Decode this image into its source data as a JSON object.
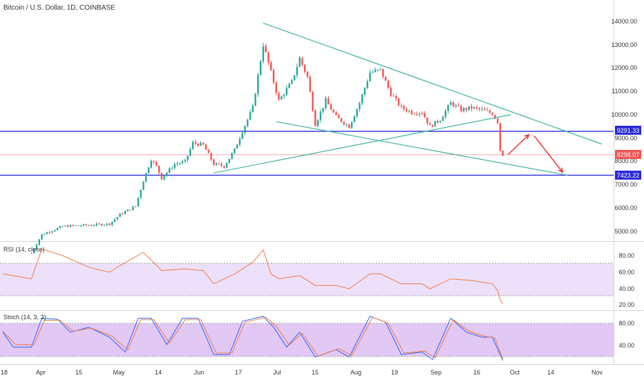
{
  "header": {
    "title": "Bitcoin / U.S. Dollar, 1D, COINBASE"
  },
  "colors": {
    "up": "#26a69a",
    "down": "#ef5350",
    "trendline": "#3cb5a0",
    "hline": "#2a2ad8",
    "arrow": "#e52a2a",
    "rsi_line": "#f07b3f",
    "rsi_band": "#ede0fa",
    "stoch_k": "#2962ff",
    "stoch_d": "#f07b3f",
    "stoch_band": "#e1c8f5",
    "axis_text": "#333333"
  },
  "price_axis": {
    "ticks": [
      "14000.00",
      "13000.00",
      "12000.00",
      "11000.00",
      "10000.00",
      "9000.00",
      "8000.00",
      "7000.00",
      "6000.00",
      "5000.00"
    ],
    "tags": [
      "9291.33",
      "8298.07",
      "7423.22"
    ]
  },
  "rsi_panel": {
    "label": "RSI (14, close)",
    "ticks": [
      "80.00",
      "60.00",
      "40.00",
      "20.00"
    ]
  },
  "stoch_panel": {
    "label": "Stoch (14, 3, 3)",
    "ticks": [
      "80.00",
      "40.00"
    ]
  },
  "time_axis": {
    "ticks": [
      "18",
      "Apr",
      "15",
      "May",
      "14",
      "Jun",
      "17",
      "Jul",
      "15",
      "Aug",
      "19",
      "Sep",
      "16",
      "Oct",
      "14",
      "Nov"
    ]
  },
  "chart_data": {
    "type": "candlestick",
    "title": "Bitcoin / U.S. Dollar, 1D, COINBASE",
    "x_range": [
      "2019-03-18",
      "2019-11-07"
    ],
    "y_range": [
      4400,
      14700
    ],
    "horizontal_levels": [
      9291.33,
      8298.07,
      7423.22
    ],
    "trendlines": [
      {
        "from": [
          "2019-06-26",
          13900
        ],
        "to": [
          "2019-11-03",
          8750
        ]
      },
      {
        "from": [
          "2019-07-01",
          9700
        ],
        "to": [
          "2019-10-21",
          7420
        ]
      },
      {
        "from": [
          "2019-06-07",
          7520
        ],
        "to": [
          "2019-09-29",
          10000
        ]
      }
    ],
    "annotation_arrows": [
      {
        "from": [
          "2019-09-28",
          8300
        ],
        "to": [
          "2019-10-06",
          9150
        ]
      },
      {
        "from": [
          "2019-10-08",
          9100
        ],
        "to": [
          "2019-10-19",
          7550
        ]
      }
    ],
    "close_path": [
      [
        "2019-03-29",
        4100
      ],
      [
        "2019-04-02",
        4900
      ],
      [
        "2019-04-10",
        5250
      ],
      [
        "2019-04-20",
        5300
      ],
      [
        "2019-04-28",
        5350
      ],
      [
        "2019-05-02",
        5750
      ],
      [
        "2019-05-08",
        6100
      ],
      [
        "2019-05-11",
        7200
      ],
      [
        "2019-05-14",
        8100
      ],
      [
        "2019-05-16",
        7800
      ],
      [
        "2019-05-18",
        7300
      ],
      [
        "2019-05-23",
        7900
      ],
      [
        "2019-05-27",
        8000
      ],
      [
        "2019-05-30",
        8800
      ],
      [
        "2019-06-03",
        8700
      ],
      [
        "2019-06-07",
        7900
      ],
      [
        "2019-06-11",
        7800
      ],
      [
        "2019-06-15",
        8500
      ],
      [
        "2019-06-18",
        9300
      ],
      [
        "2019-06-22",
        10300
      ],
      [
        "2019-06-26",
        13000
      ],
      [
        "2019-06-29",
        11800
      ],
      [
        "2019-07-02",
        10600
      ],
      [
        "2019-07-07",
        11400
      ],
      [
        "2019-07-10",
        12400
      ],
      [
        "2019-07-13",
        11600
      ],
      [
        "2019-07-16",
        9600
      ],
      [
        "2019-07-20",
        10600
      ],
      [
        "2019-07-24",
        9900
      ],
      [
        "2019-07-29",
        9500
      ],
      [
        "2019-08-02",
        10500
      ],
      [
        "2019-08-06",
        11800
      ],
      [
        "2019-08-10",
        11900
      ],
      [
        "2019-08-14",
        10900
      ],
      [
        "2019-08-18",
        10300
      ],
      [
        "2019-08-22",
        10100
      ],
      [
        "2019-08-26",
        10100
      ],
      [
        "2019-08-29",
        9500
      ],
      [
        "2019-09-02",
        9800
      ],
      [
        "2019-09-06",
        10500
      ],
      [
        "2019-09-10",
        10200
      ],
      [
        "2019-09-14",
        10300
      ],
      [
        "2019-09-18",
        10200
      ],
      [
        "2019-09-22",
        10050
      ],
      [
        "2019-09-24",
        9700
      ],
      [
        "2019-09-25",
        8500
      ],
      [
        "2019-09-26",
        8298
      ]
    ],
    "rsi": {
      "name": "RSI (14, close)",
      "band": [
        30,
        70
      ],
      "ylim": [
        15,
        95
      ],
      "points": [
        [
          "2019-03-18",
          58
        ],
        [
          "2019-03-29",
          52
        ],
        [
          "2019-04-02",
          88
        ],
        [
          "2019-04-10",
          80
        ],
        [
          "2019-04-20",
          66
        ],
        [
          "2019-04-28",
          60
        ],
        [
          "2019-05-02",
          68
        ],
        [
          "2019-05-11",
          84
        ],
        [
          "2019-05-18",
          62
        ],
        [
          "2019-05-27",
          64
        ],
        [
          "2019-06-03",
          62
        ],
        [
          "2019-06-07",
          46
        ],
        [
          "2019-06-15",
          58
        ],
        [
          "2019-06-22",
          72
        ],
        [
          "2019-06-26",
          87
        ],
        [
          "2019-06-29",
          58
        ],
        [
          "2019-07-02",
          52
        ],
        [
          "2019-07-10",
          56
        ],
        [
          "2019-07-16",
          44
        ],
        [
          "2019-07-24",
          44
        ],
        [
          "2019-07-29",
          40
        ],
        [
          "2019-08-06",
          58
        ],
        [
          "2019-08-10",
          58
        ],
        [
          "2019-08-18",
          46
        ],
        [
          "2019-08-26",
          46
        ],
        [
          "2019-08-29",
          40
        ],
        [
          "2019-09-06",
          52
        ],
        [
          "2019-09-14",
          50
        ],
        [
          "2019-09-22",
          46
        ],
        [
          "2019-09-24",
          38
        ],
        [
          "2019-09-25",
          26
        ],
        [
          "2019-09-26",
          22
        ]
      ]
    },
    "stoch": {
      "name": "Stoch (14, 3, 3)",
      "band": [
        20,
        80
      ],
      "ylim": [
        0,
        100
      ],
      "k_points": [
        [
          "2019-03-18",
          60
        ],
        [
          "2019-03-22",
          30
        ],
        [
          "2019-03-29",
          30
        ],
        [
          "2019-04-02",
          88
        ],
        [
          "2019-04-08",
          86
        ],
        [
          "2019-04-13",
          60
        ],
        [
          "2019-04-20",
          70
        ],
        [
          "2019-04-28",
          50
        ],
        [
          "2019-05-04",
          20
        ],
        [
          "2019-05-09",
          88
        ],
        [
          "2019-05-14",
          88
        ],
        [
          "2019-05-20",
          35
        ],
        [
          "2019-05-26",
          88
        ],
        [
          "2019-06-01",
          88
        ],
        [
          "2019-06-07",
          15
        ],
        [
          "2019-06-13",
          15
        ],
        [
          "2019-06-18",
          82
        ],
        [
          "2019-06-26",
          92
        ],
        [
          "2019-06-30",
          70
        ],
        [
          "2019-07-05",
          30
        ],
        [
          "2019-07-10",
          60
        ],
        [
          "2019-07-16",
          10
        ],
        [
          "2019-07-24",
          25
        ],
        [
          "2019-07-29",
          10
        ],
        [
          "2019-08-06",
          92
        ],
        [
          "2019-08-12",
          80
        ],
        [
          "2019-08-18",
          15
        ],
        [
          "2019-08-26",
          20
        ],
        [
          "2019-08-30",
          5
        ],
        [
          "2019-09-06",
          88
        ],
        [
          "2019-09-12",
          60
        ],
        [
          "2019-09-18",
          50
        ],
        [
          "2019-09-22",
          50
        ],
        [
          "2019-09-26",
          3
        ]
      ],
      "d_points": [
        [
          "2019-03-18",
          62
        ],
        [
          "2019-03-23",
          35
        ],
        [
          "2019-03-30",
          35
        ],
        [
          "2019-04-03",
          84
        ],
        [
          "2019-04-09",
          84
        ],
        [
          "2019-04-14",
          62
        ],
        [
          "2019-04-21",
          68
        ],
        [
          "2019-04-29",
          52
        ],
        [
          "2019-05-05",
          24
        ],
        [
          "2019-05-10",
          85
        ],
        [
          "2019-05-15",
          85
        ],
        [
          "2019-05-21",
          38
        ],
        [
          "2019-05-27",
          85
        ],
        [
          "2019-06-02",
          85
        ],
        [
          "2019-06-08",
          18
        ],
        [
          "2019-06-14",
          18
        ],
        [
          "2019-06-19",
          80
        ],
        [
          "2019-06-27",
          90
        ],
        [
          "2019-07-01",
          72
        ],
        [
          "2019-07-06",
          34
        ],
        [
          "2019-07-11",
          58
        ],
        [
          "2019-07-17",
          12
        ],
        [
          "2019-07-25",
          27
        ],
        [
          "2019-07-30",
          13
        ],
        [
          "2019-08-07",
          90
        ],
        [
          "2019-08-13",
          78
        ],
        [
          "2019-08-19",
          18
        ],
        [
          "2019-08-27",
          22
        ],
        [
          "2019-08-31",
          8
        ],
        [
          "2019-09-07",
          85
        ],
        [
          "2019-09-13",
          62
        ],
        [
          "2019-09-19",
          52
        ],
        [
          "2019-09-23",
          48
        ],
        [
          "2019-09-26",
          6
        ]
      ]
    }
  }
}
